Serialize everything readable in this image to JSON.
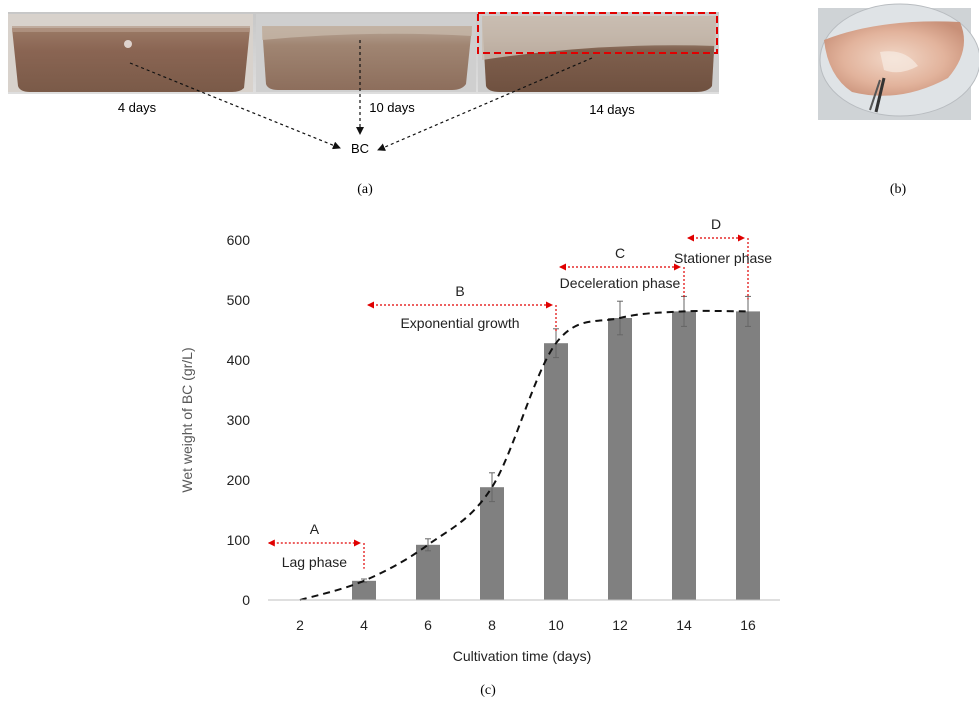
{
  "photos": {
    "days_labels": [
      "4 days",
      "10 days",
      "14 days"
    ],
    "product_label": "BC",
    "panel_a": "(a)",
    "panel_b": "(b)"
  },
  "panel_c": "(c)",
  "chart_data": {
    "type": "bar",
    "categories": [
      "2",
      "4",
      "6",
      "8",
      "10",
      "12",
      "14",
      "16"
    ],
    "values": [
      0,
      32,
      92,
      188,
      428,
      470,
      481,
      481
    ],
    "errors": [
      0,
      3,
      10,
      24,
      24,
      28,
      25,
      25
    ],
    "trend": "dashed sigmoid fit",
    "xlabel": "Cultivation time (days)",
    "ylabel": "Wet weight of BC (gr/L)",
    "ylim": [
      0,
      600
    ],
    "yticks": [
      "0",
      "100",
      "200",
      "300",
      "400",
      "500",
      "600"
    ],
    "bar_color": "#808080",
    "phases": [
      {
        "letter": "A",
        "name": "Lag phase",
        "from": 2,
        "to": 4
      },
      {
        "letter": "B",
        "name": "Exponential growth",
        "from": 4,
        "to": 10
      },
      {
        "letter": "C",
        "name": "Deceleration phase",
        "from": 10,
        "to": 14
      },
      {
        "letter": "D",
        "name": "Stationer phase",
        "from": 14,
        "to": 16
      }
    ]
  }
}
